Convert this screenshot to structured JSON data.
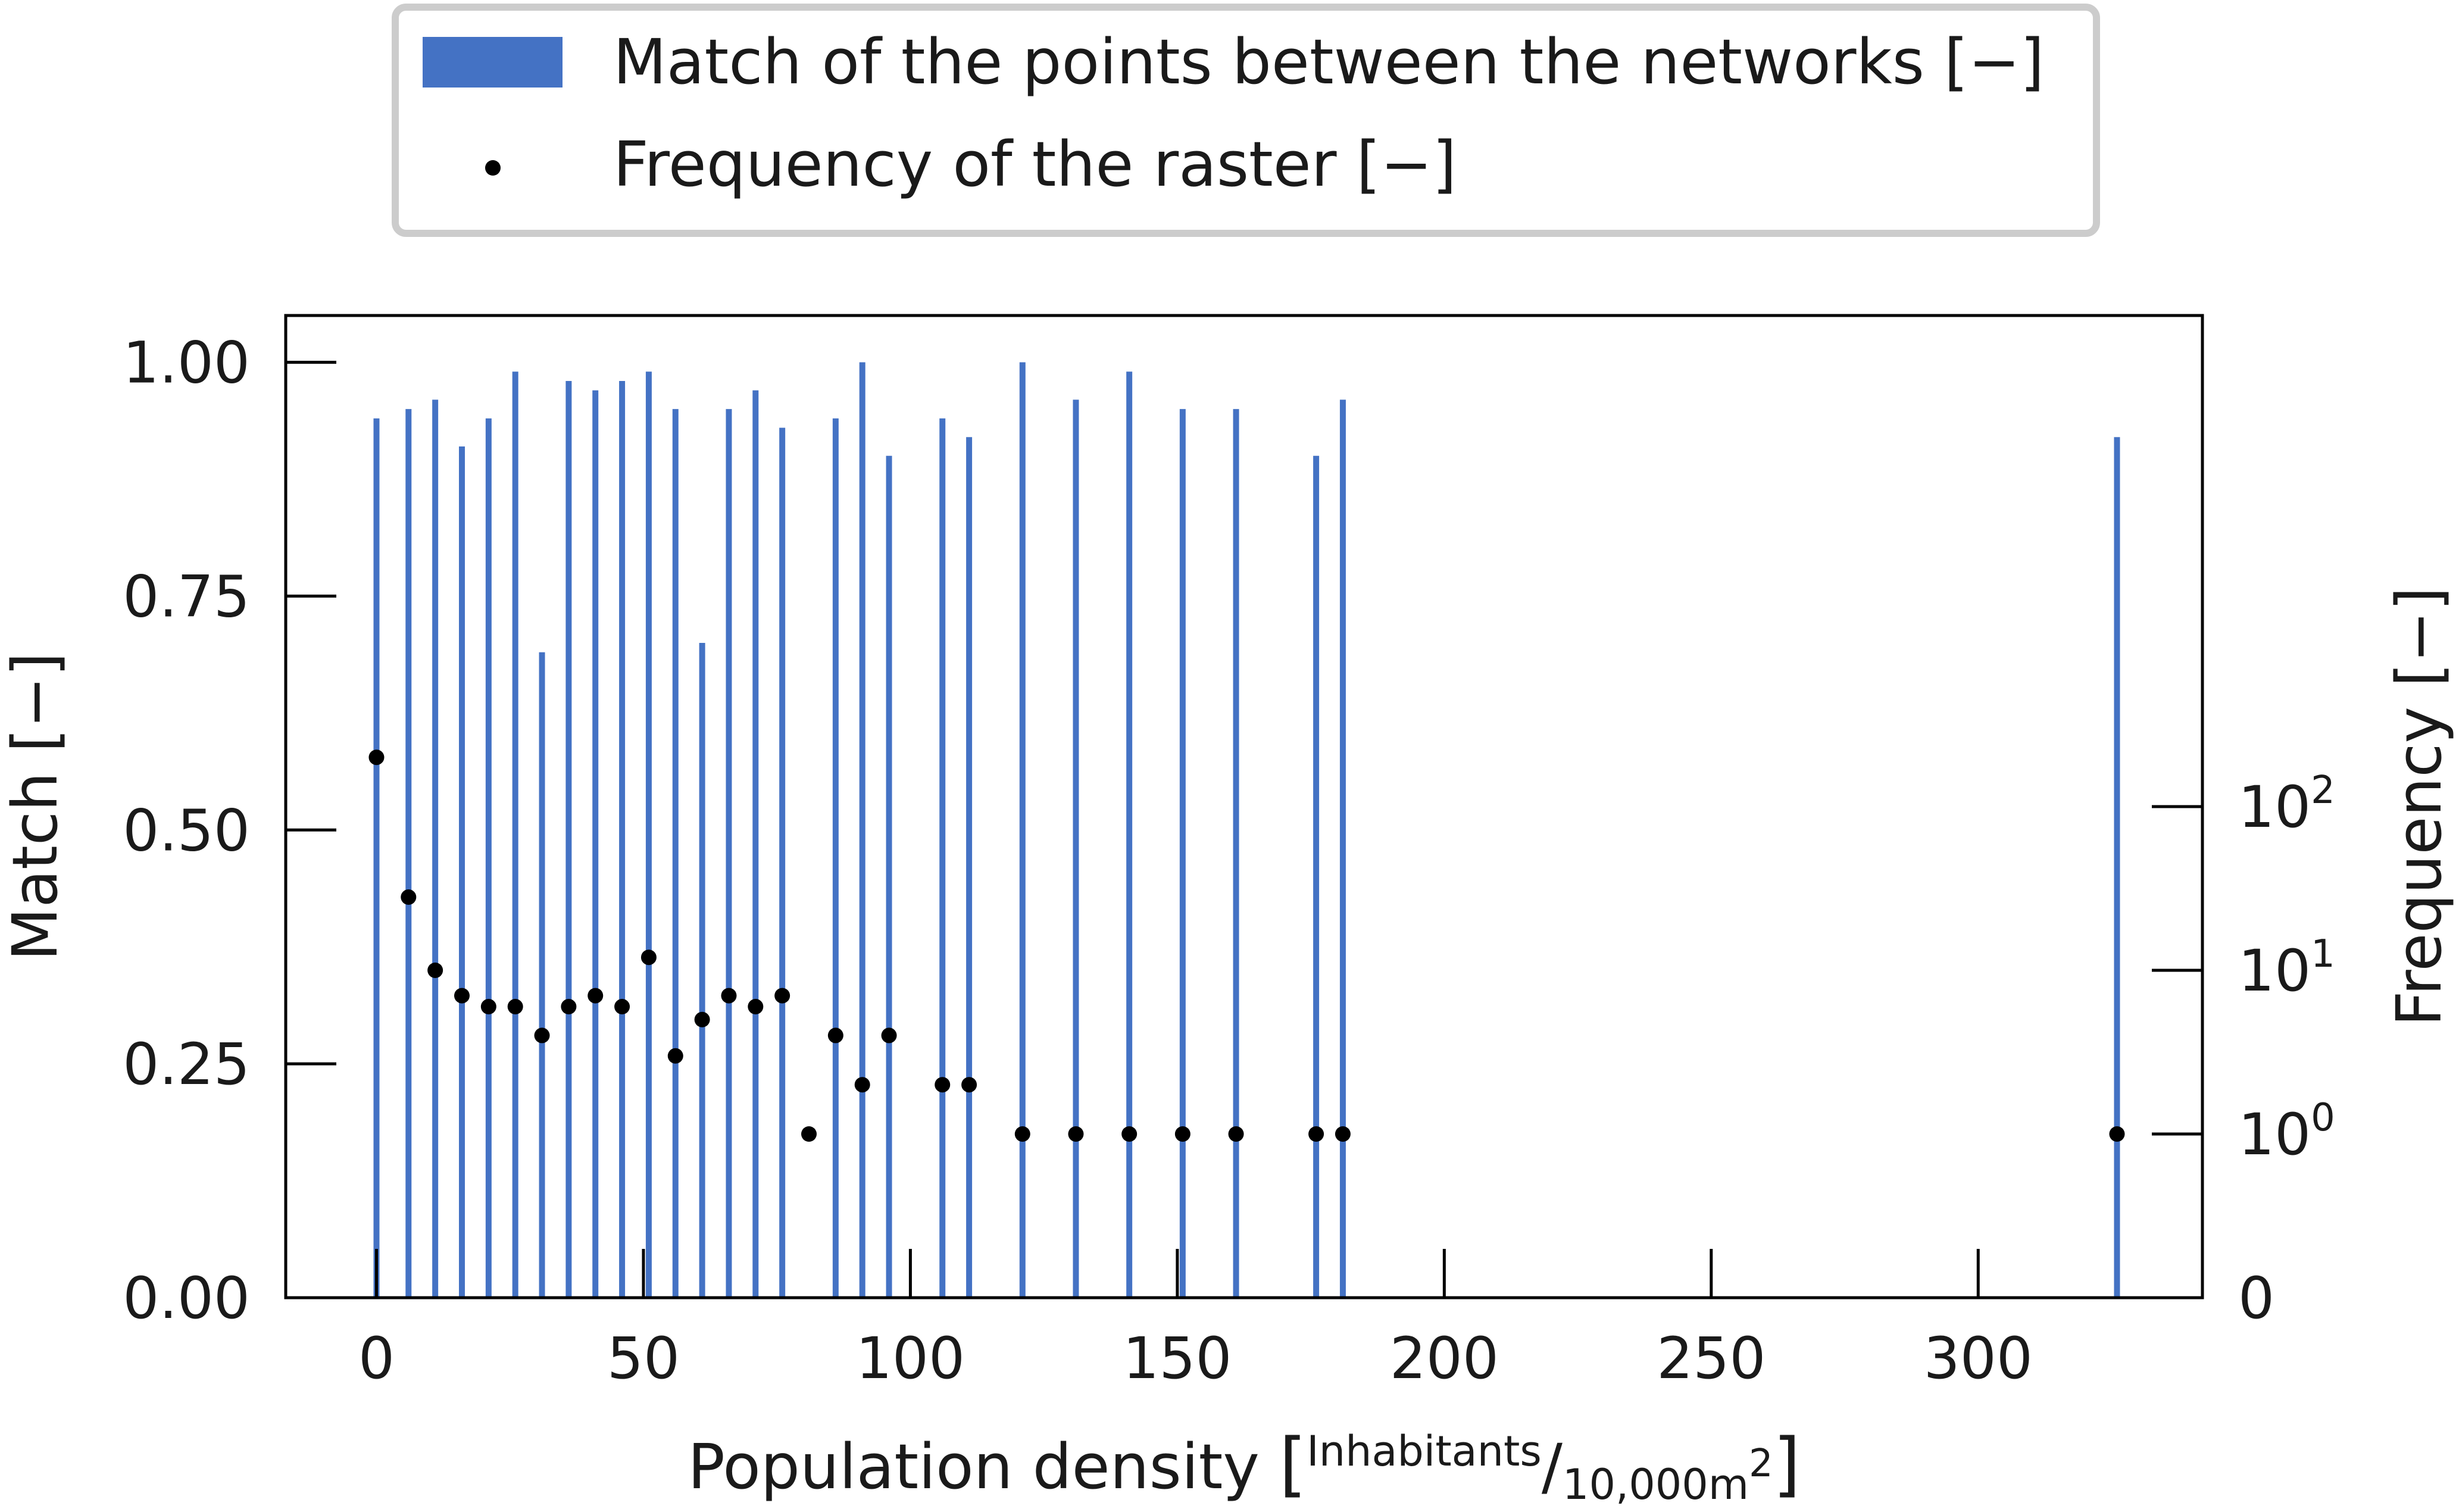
{
  "chart_data": {
    "type": "bar",
    "legend": {
      "placement": "top-center",
      "entries": [
        {
          "label": "Match of the points between the networks [−]",
          "marker": "bar",
          "color": "#4472C4"
        },
        {
          "label": "Frequency of the raster [−]",
          "marker": "dot",
          "color": "#000000"
        }
      ]
    },
    "xlabel": {
      "main": "Population density ",
      "unit_num": "Inhabitants",
      "unit_den": "10,000m",
      "unit_exp": "2"
    },
    "ylabel_left": "Match [−]",
    "ylabel_right": "Frequency [−]",
    "xlim": [
      -17,
      342
    ],
    "x_ticks": [
      0,
      50,
      100,
      150,
      200,
      250,
      300
    ],
    "x_tick_labels": [
      "0",
      "50",
      "100",
      "150",
      "200",
      "250",
      "300"
    ],
    "ylim_left": [
      0,
      1.05
    ],
    "y_ticks_left": [
      0,
      0.25,
      0.5,
      0.75,
      1
    ],
    "y_tick_labels_left": [
      "0.00",
      "0.25",
      "0.50",
      "0.75",
      "1.00"
    ],
    "right_axis_scale": "symlog",
    "y_ticks_right": [
      0,
      1,
      10,
      100
    ],
    "y_tick_labels_right": [
      {
        "base": "0",
        "exp": ""
      },
      {
        "base": "10",
        "exp": "0"
      },
      {
        "base": "10",
        "exp": "1"
      },
      {
        "base": "10",
        "exp": "2"
      }
    ],
    "grid": false,
    "series": [
      {
        "name": "Match of the points between the networks [−]",
        "type": "bar",
        "color": "#4472C4",
        "x": [
          0,
          6,
          11,
          16,
          21,
          26,
          31,
          36,
          41,
          46,
          51,
          56,
          61,
          66,
          71,
          76,
          86,
          91,
          96,
          106,
          111,
          121,
          131,
          141,
          151,
          161,
          176,
          181,
          326
        ],
        "values": [
          0.94,
          0.95,
          0.96,
          0.91,
          0.94,
          0.99,
          0.69,
          0.98,
          0.97,
          0.98,
          0.99,
          0.95,
          0.7,
          0.95,
          0.97,
          0.93,
          0.94,
          1.0,
          0.9,
          0.94,
          0.92,
          1.0,
          0.96,
          0.99,
          0.95,
          0.95,
          0.9,
          0.96,
          0.92
        ]
      },
      {
        "name": "Frequency of the raster [−]",
        "type": "scatter",
        "color": "#000000",
        "x": [
          0,
          6,
          11,
          16,
          21,
          26,
          31,
          36,
          41,
          46,
          51,
          56,
          61,
          66,
          71,
          76,
          81,
          86,
          91,
          96,
          106,
          111,
          121,
          131,
          141,
          151,
          161,
          176,
          181,
          326
        ],
        "values": [
          200,
          28,
          10,
          7,
          6,
          6,
          4,
          6,
          7,
          6,
          12,
          3,
          5,
          7,
          6,
          7,
          1,
          4,
          2,
          4,
          2,
          2,
          1,
          1,
          1,
          1,
          1,
          1,
          1,
          1
        ]
      }
    ]
  }
}
